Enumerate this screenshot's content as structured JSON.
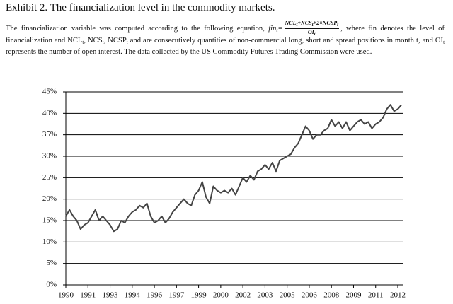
{
  "title": "Exhibit 2. The financialization level in the commodity markets.",
  "paragraph": {
    "intro": "The financialization variable was computed according to the following equation,",
    "lhs": [
      "fin",
      "t",
      "="
    ],
    "numerator": [
      "NCL",
      "t",
      "+NCS",
      "t",
      "+2×NCSP",
      "t"
    ],
    "denominator": [
      "OI",
      "t"
    ],
    "rest": [
      ", where fin denotes the level of financialization and NCL",
      "t",
      ", NCS",
      "t",
      ", NCSP",
      "t",
      " and are consecutively quantities of non-commercial long, short and spread positions in month t, and OI",
      "t",
      " represents the number of open interest. The data collected by the US Commodity Futures Trading Commission were used."
    ]
  },
  "chart_data": {
    "type": "line",
    "color": "#444444",
    "grid": true,
    "ylim": [
      0,
      45
    ],
    "yticks": [
      {
        "value": 0,
        "label": "0%"
      },
      {
        "value": 5,
        "label": "5%"
      },
      {
        "value": 10,
        "label": "10%"
      },
      {
        "value": 15,
        "label": "15%"
      },
      {
        "value": 20,
        "label": "20%"
      },
      {
        "value": 25,
        "label": "25%"
      },
      {
        "value": 30,
        "label": "30%"
      },
      {
        "value": 35,
        "label": "35%"
      },
      {
        "value": 40,
        "label": "40%"
      },
      {
        "value": 45,
        "label": "45%"
      }
    ],
    "categories": [
      "1990",
      null,
      null,
      null,
      null,
      null,
      "1991",
      null,
      null,
      null,
      null,
      null,
      "1993",
      null,
      null,
      null,
      null,
      null,
      "1994",
      null,
      null,
      null,
      null,
      null,
      "1996",
      null,
      null,
      null,
      null,
      null,
      "1997",
      null,
      null,
      null,
      null,
      null,
      "1999",
      null,
      null,
      null,
      null,
      null,
      "2000",
      null,
      null,
      null,
      null,
      null,
      "2002",
      null,
      null,
      null,
      null,
      null,
      "2003",
      null,
      null,
      null,
      null,
      null,
      "2005",
      null,
      null,
      null,
      null,
      null,
      "2006",
      null,
      null,
      null,
      null,
      null,
      "2008",
      null,
      null,
      null,
      null,
      null,
      "2009",
      null,
      null,
      null,
      null,
      null,
      "2011",
      null,
      null,
      null,
      null,
      null,
      "2012",
      null
    ],
    "values": [
      16,
      17.5,
      16,
      15,
      13,
      14,
      14.5,
      16,
      17.5,
      15,
      16,
      15,
      14,
      12.5,
      13,
      15,
      14.5,
      16,
      17,
      17.5,
      18.5,
      18,
      19,
      16,
      14.5,
      15,
      16,
      14.5,
      15.5,
      17,
      18,
      19,
      20,
      19,
      18.5,
      21,
      22,
      24,
      20.5,
      19,
      23,
      22,
      21.5,
      22,
      21.5,
      22.5,
      21,
      23,
      25,
      24,
      25.5,
      24.5,
      26.5,
      27,
      28,
      27,
      28.5,
      26.5,
      29,
      29.5,
      30,
      30.5,
      32,
      33,
      35,
      37,
      36,
      34,
      35,
      35,
      36,
      36.5,
      38.5,
      37,
      38,
      36.5,
      38,
      36,
      37,
      38,
      38.5,
      37.5,
      38,
      36.5,
      37.5,
      38,
      39,
      41,
      42,
      40.5,
      41,
      42
    ]
  }
}
